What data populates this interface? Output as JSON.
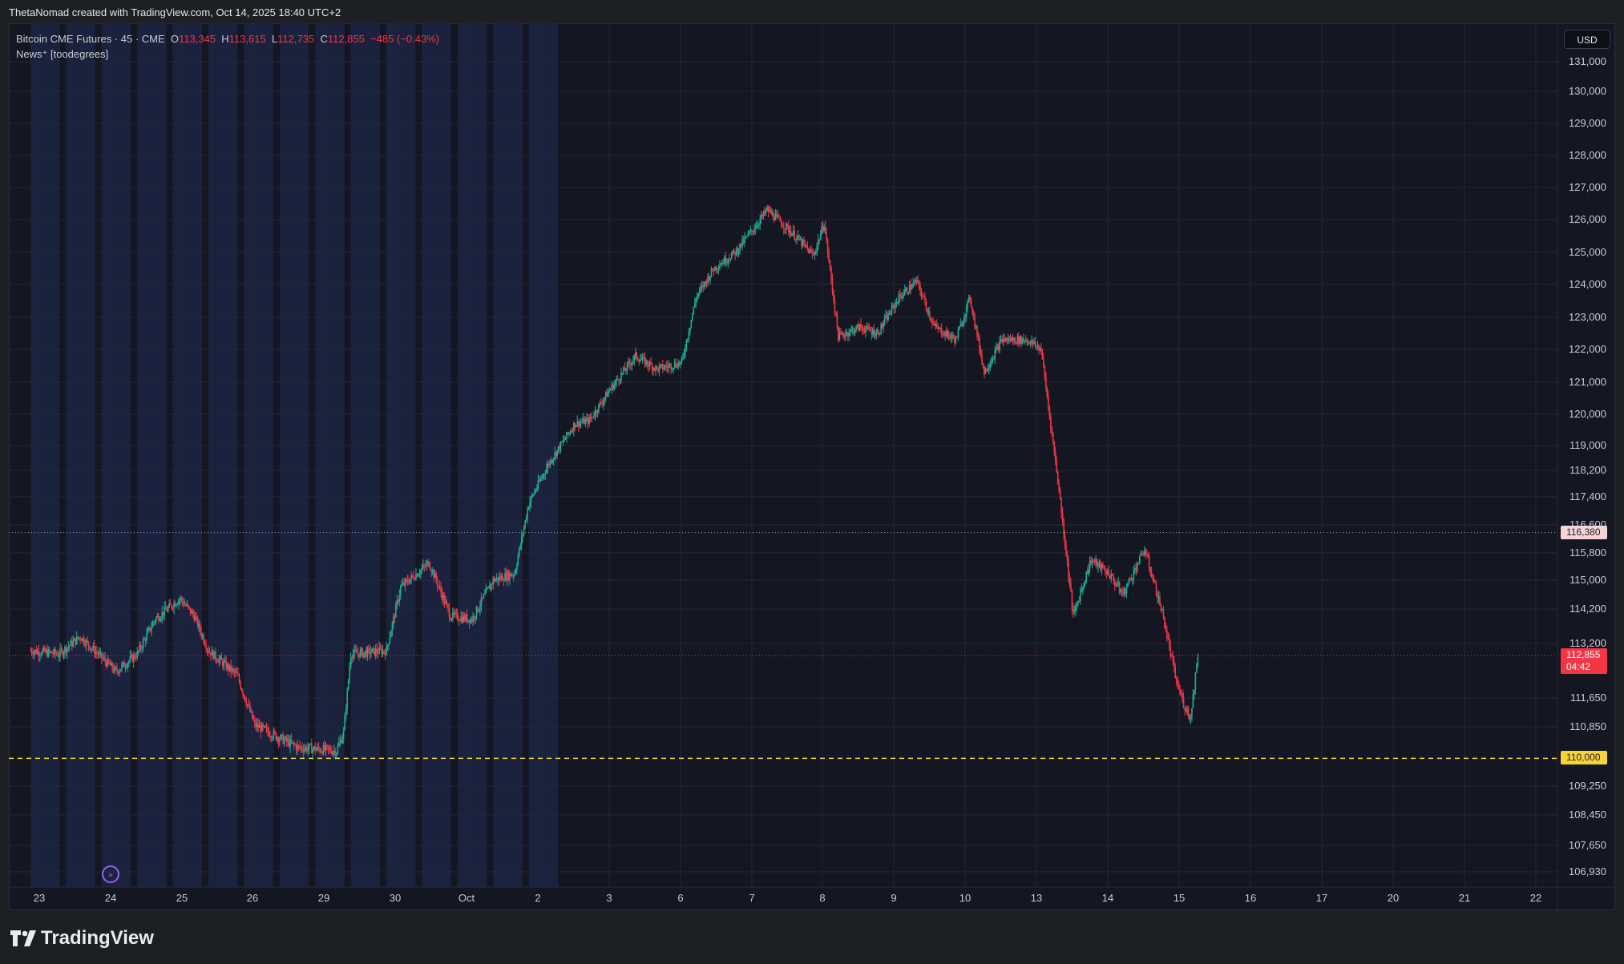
{
  "header": {
    "text": "ThetaNomad created with TradingView.com, Oct 14, 2025 18:40 UTC+2"
  },
  "legend": {
    "symbol": "Bitcoin CME Futures · 45 · CME",
    "o_label": "O",
    "o_value": "113,345",
    "h_label": "H",
    "h_value": "113,615",
    "l_label": "L",
    "l_value": "112,735",
    "c_label": "C",
    "c_value": "112,855",
    "change": "−485 (−0.43%)",
    "indicator": "News⁺ [toodegrees]"
  },
  "currency_button": "USD",
  "logo_text": "TradingView",
  "colors": {
    "up": "#22ab94",
    "down": "#f23645",
    "background": "#141722",
    "session_band": "#1b2340",
    "level_line": "#f7d33a"
  },
  "chart_data": {
    "type": "candlestick",
    "title": "Bitcoin CME Futures · 45 · CME",
    "price_axis_ticks": [
      131000,
      130000,
      129000,
      128000,
      127000,
      126000,
      125000,
      124000,
      123000,
      122000,
      121000,
      120000,
      119000,
      118200,
      117400,
      116600,
      115800,
      115000,
      114200,
      113200,
      111650,
      110850,
      109250,
      108450,
      107650,
      106930
    ],
    "price_axis_labels": [
      "131,000",
      "130,000",
      "129,000",
      "128,000",
      "127,000",
      "126,000",
      "125,000",
      "124,000",
      "123,000",
      "122,000",
      "121,000",
      "120,000",
      "119,000",
      "118,200",
      "117,400",
      "116,600",
      "115,800",
      "115,000",
      "114,200",
      "113,200",
      "111,650",
      "110,850",
      "109,250",
      "108,450",
      "107,650",
      "106,930"
    ],
    "time_axis_labels": [
      "23",
      "24",
      "25",
      "26",
      "29",
      "30",
      "Oct",
      "2",
      "3",
      "6",
      "7",
      "8",
      "9",
      "10",
      "13",
      "14",
      "15",
      "16",
      "17",
      "20",
      "21",
      "22"
    ],
    "price_path": [
      {
        "t": 0.0,
        "p": 113000
      },
      {
        "t": 0.8,
        "p": 112900
      },
      {
        "t": 1.4,
        "p": 113400
      },
      {
        "t": 2.4,
        "p": 112400
      },
      {
        "t": 3.0,
        "p": 112900
      },
      {
        "t": 3.5,
        "p": 113900
      },
      {
        "t": 4.2,
        "p": 114500
      },
      {
        "t": 4.6,
        "p": 114000
      },
      {
        "t": 5.0,
        "p": 113000
      },
      {
        "t": 5.8,
        "p": 112300
      },
      {
        "t": 6.3,
        "p": 110900
      },
      {
        "t": 7.5,
        "p": 110300
      },
      {
        "t": 8.6,
        "p": 110200
      },
      {
        "t": 8.8,
        "p": 110700
      },
      {
        "t": 9.0,
        "p": 112900
      },
      {
        "t": 10.0,
        "p": 113000
      },
      {
        "t": 10.4,
        "p": 114800
      },
      {
        "t": 11.2,
        "p": 115500
      },
      {
        "t": 11.8,
        "p": 114000
      },
      {
        "t": 12.4,
        "p": 113900
      },
      {
        "t": 13.0,
        "p": 115000
      },
      {
        "t": 13.6,
        "p": 115200
      },
      {
        "t": 14.0,
        "p": 117200
      },
      {
        "t": 14.6,
        "p": 118500
      },
      {
        "t": 15.3,
        "p": 119700
      },
      {
        "t": 15.7,
        "p": 119800
      },
      {
        "t": 16.3,
        "p": 120800
      },
      {
        "t": 17.0,
        "p": 121800
      },
      {
        "t": 17.6,
        "p": 121400
      },
      {
        "t": 18.3,
        "p": 121600
      },
      {
        "t": 18.7,
        "p": 123600
      },
      {
        "t": 19.2,
        "p": 124500
      },
      {
        "t": 19.8,
        "p": 125000
      },
      {
        "t": 20.3,
        "p": 125700
      },
      {
        "t": 20.7,
        "p": 126300
      },
      {
        "t": 21.4,
        "p": 125600
      },
      {
        "t": 22.0,
        "p": 124900
      },
      {
        "t": 22.3,
        "p": 125900
      },
      {
        "t": 22.7,
        "p": 122400
      },
      {
        "t": 23.3,
        "p": 122700
      },
      {
        "t": 23.8,
        "p": 122500
      },
      {
        "t": 24.4,
        "p": 123600
      },
      {
        "t": 24.9,
        "p": 124100
      },
      {
        "t": 25.4,
        "p": 122700
      },
      {
        "t": 26.0,
        "p": 122300
      },
      {
        "t": 26.4,
        "p": 123600
      },
      {
        "t": 26.8,
        "p": 121300
      },
      {
        "t": 27.3,
        "p": 122300
      },
      {
        "t": 28.0,
        "p": 122300
      },
      {
        "t": 28.4,
        "p": 122000
      },
      {
        "t": 28.8,
        "p": 118500
      },
      {
        "t": 29.3,
        "p": 114000
      },
      {
        "t": 29.8,
        "p": 115600
      },
      {
        "t": 30.3,
        "p": 115200
      },
      {
        "t": 30.7,
        "p": 114600
      },
      {
        "t": 31.3,
        "p": 115900
      },
      {
        "t": 31.8,
        "p": 114100
      },
      {
        "t": 32.2,
        "p": 112100
      },
      {
        "t": 32.4,
        "p": 111500
      },
      {
        "t": 32.6,
        "p": 111100
      },
      {
        "t": 32.8,
        "p": 112900
      }
    ],
    "horizontal_levels": [
      {
        "price": 116380,
        "label": "116,380",
        "style": "dotted"
      },
      {
        "price": 112855,
        "label": "112,855",
        "sublabel": "04:42",
        "style": "dotted",
        "current": true
      },
      {
        "price": 110000,
        "label": "110,000",
        "style": "dashed"
      }
    ],
    "last_price": 112855,
    "countdown": "04:42",
    "ylim": [
      106500,
      131300
    ],
    "grid": true
  }
}
